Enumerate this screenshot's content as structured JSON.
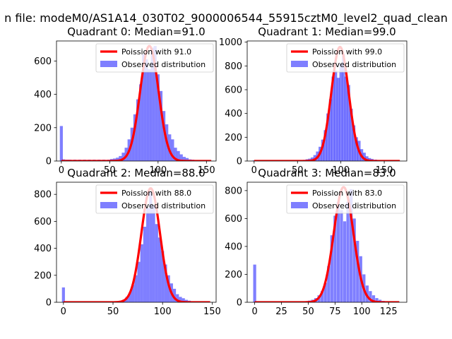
{
  "figure": {
    "suptitle": "n file: modeM0/AS1A14_030T02_9000006544_55915cztM0_level2_quad_clean"
  },
  "colors": {
    "bar": "#0000ff",
    "bar_alpha": 0.5,
    "poisson_line": "#ff0000",
    "background": "#ffffff",
    "axis": "#000000"
  },
  "chart_data": [
    {
      "type": "bar",
      "title": "Quadrant 0: Median=91.0",
      "xlim": [
        -5,
        160
      ],
      "ylim": [
        0,
        720
      ],
      "xticks": [
        0,
        50,
        100,
        150
      ],
      "yticks": [
        0,
        200,
        400,
        600
      ],
      "legend": {
        "position": "top-right",
        "line_label": "Poission with 91.0",
        "bar_label": "Observed distribution"
      },
      "poisson": {
        "mean": 91.0,
        "peak": 690,
        "x_range": [
          0,
          155
        ]
      },
      "bin_width": 3.1,
      "bars": [
        {
          "x": 0,
          "y": 210
        },
        {
          "x": 2.5,
          "y": 10
        },
        {
          "x": 6,
          "y": 8
        },
        {
          "x": 9,
          "y": 8
        },
        {
          "x": 14,
          "y": 8
        },
        {
          "x": 19,
          "y": 8
        },
        {
          "x": 24,
          "y": 8
        },
        {
          "x": 29,
          "y": 8
        },
        {
          "x": 34,
          "y": 8
        },
        {
          "x": 39,
          "y": 8
        },
        {
          "x": 44,
          "y": 8
        },
        {
          "x": 49,
          "y": 8
        },
        {
          "x": 52,
          "y": 12
        },
        {
          "x": 55,
          "y": 15
        },
        {
          "x": 58,
          "y": 20
        },
        {
          "x": 61,
          "y": 30
        },
        {
          "x": 64,
          "y": 50
        },
        {
          "x": 67,
          "y": 80
        },
        {
          "x": 70,
          "y": 130
        },
        {
          "x": 73,
          "y": 200
        },
        {
          "x": 76,
          "y": 280
        },
        {
          "x": 79,
          "y": 370
        },
        {
          "x": 82,
          "y": 460
        },
        {
          "x": 85,
          "y": 640
        },
        {
          "x": 88,
          "y": 610
        },
        {
          "x": 91,
          "y": 550
        },
        {
          "x": 94,
          "y": 680
        },
        {
          "x": 97,
          "y": 690
        },
        {
          "x": 100,
          "y": 520
        },
        {
          "x": 103,
          "y": 420
        },
        {
          "x": 106,
          "y": 300
        },
        {
          "x": 109,
          "y": 220
        },
        {
          "x": 112,
          "y": 160
        },
        {
          "x": 115,
          "y": 130
        },
        {
          "x": 118,
          "y": 80
        },
        {
          "x": 121,
          "y": 60
        },
        {
          "x": 124,
          "y": 40
        },
        {
          "x": 127,
          "y": 25
        },
        {
          "x": 130,
          "y": 18
        },
        {
          "x": 133,
          "y": 10
        },
        {
          "x": 136,
          "y": 8
        },
        {
          "x": 140,
          "y": 6
        },
        {
          "x": 145,
          "y": 5
        },
        {
          "x": 150,
          "y": 4
        }
      ]
    },
    {
      "type": "bar",
      "title": "Quadrant 1: Median=99.0",
      "xlim": [
        -8,
        176
      ],
      "ylim": [
        0,
        1010
      ],
      "xticks": [
        0,
        50,
        100,
        150
      ],
      "yticks": [
        0,
        200,
        400,
        600,
        800,
        1000
      ],
      "legend": {
        "position": "top-right",
        "line_label": "Poission with 99.0",
        "bar_label": "Observed distribution"
      },
      "poisson": {
        "mean": 99.0,
        "peak": 960,
        "x_range": [
          0,
          168
        ]
      },
      "bin_width": 3.4,
      "bars": [
        {
          "x": 0,
          "y": 5
        },
        {
          "x": 20,
          "y": 5
        },
        {
          "x": 40,
          "y": 5
        },
        {
          "x": 55,
          "y": 6
        },
        {
          "x": 58,
          "y": 10
        },
        {
          "x": 61,
          "y": 15
        },
        {
          "x": 64,
          "y": 20
        },
        {
          "x": 67,
          "y": 30
        },
        {
          "x": 70,
          "y": 50
        },
        {
          "x": 73,
          "y": 80
        },
        {
          "x": 76,
          "y": 120
        },
        {
          "x": 79,
          "y": 180
        },
        {
          "x": 82,
          "y": 260
        },
        {
          "x": 85,
          "y": 400
        },
        {
          "x": 88,
          "y": 520
        },
        {
          "x": 91,
          "y": 710
        },
        {
          "x": 94,
          "y": 760
        },
        {
          "x": 97,
          "y": 700
        },
        {
          "x": 100,
          "y": 820
        },
        {
          "x": 103,
          "y": 900
        },
        {
          "x": 106,
          "y": 710
        },
        {
          "x": 109,
          "y": 640
        },
        {
          "x": 112,
          "y": 440
        },
        {
          "x": 115,
          "y": 300
        },
        {
          "x": 118,
          "y": 200
        },
        {
          "x": 121,
          "y": 170
        },
        {
          "x": 124,
          "y": 100
        },
        {
          "x": 127,
          "y": 70
        },
        {
          "x": 130,
          "y": 40
        },
        {
          "x": 133,
          "y": 25
        },
        {
          "x": 136,
          "y": 18
        },
        {
          "x": 140,
          "y": 12
        },
        {
          "x": 145,
          "y": 8
        },
        {
          "x": 150,
          "y": 6
        },
        {
          "x": 155,
          "y": 5
        },
        {
          "x": 160,
          "y": 4
        },
        {
          "x": 165,
          "y": 3
        }
      ]
    },
    {
      "type": "bar",
      "title": "Quadrant 2: Median=88.0",
      "xlim": [
        -7,
        154
      ],
      "ylim": [
        0,
        890
      ],
      "xticks": [
        0,
        50,
        100,
        150
      ],
      "yticks": [
        0,
        200,
        400,
        600,
        800
      ],
      "legend": {
        "position": "top-right",
        "line_label": "Poission with 88.0",
        "bar_label": "Observed distribution"
      },
      "poisson": {
        "mean": 88.0,
        "peak": 845,
        "x_range": [
          0,
          148
        ]
      },
      "bin_width": 3.0,
      "bars": [
        {
          "x": 0,
          "y": 110
        },
        {
          "x": 10,
          "y": 4
        },
        {
          "x": 30,
          "y": 4
        },
        {
          "x": 50,
          "y": 5
        },
        {
          "x": 55,
          "y": 8
        },
        {
          "x": 58,
          "y": 12
        },
        {
          "x": 61,
          "y": 20
        },
        {
          "x": 64,
          "y": 40
        },
        {
          "x": 67,
          "y": 70
        },
        {
          "x": 70,
          "y": 130
        },
        {
          "x": 73,
          "y": 200
        },
        {
          "x": 76,
          "y": 300
        },
        {
          "x": 79,
          "y": 430
        },
        {
          "x": 82,
          "y": 560
        },
        {
          "x": 85,
          "y": 700
        },
        {
          "x": 88,
          "y": 820
        },
        {
          "x": 91,
          "y": 720
        },
        {
          "x": 94,
          "y": 580
        },
        {
          "x": 97,
          "y": 480
        },
        {
          "x": 100,
          "y": 380
        },
        {
          "x": 103,
          "y": 280
        },
        {
          "x": 106,
          "y": 200
        },
        {
          "x": 109,
          "y": 140
        },
        {
          "x": 112,
          "y": 100
        },
        {
          "x": 115,
          "y": 60
        },
        {
          "x": 118,
          "y": 40
        },
        {
          "x": 121,
          "y": 30
        },
        {
          "x": 124,
          "y": 18
        },
        {
          "x": 127,
          "y": 12
        },
        {
          "x": 130,
          "y": 8
        },
        {
          "x": 135,
          "y": 5
        },
        {
          "x": 140,
          "y": 4
        },
        {
          "x": 145,
          "y": 3
        }
      ]
    },
    {
      "type": "bar",
      "title": "Quadrant 3: Median=83.0",
      "xlim": [
        -7,
        142
      ],
      "ylim": [
        0,
        860
      ],
      "xticks": [
        0,
        25,
        50,
        75,
        100,
        125
      ],
      "yticks": [
        0,
        200,
        400,
        600,
        800
      ],
      "legend": {
        "position": "top-right",
        "line_label": "Poission with 83.0",
        "bar_label": "Observed distribution"
      },
      "poisson": {
        "mean": 83.0,
        "peak": 825,
        "x_range": [
          0,
          135
        ]
      },
      "bin_width": 2.8,
      "bars": [
        {
          "x": 0,
          "y": 270
        },
        {
          "x": 10,
          "y": 5
        },
        {
          "x": 20,
          "y": 5
        },
        {
          "x": 30,
          "y": 5
        },
        {
          "x": 40,
          "y": 5
        },
        {
          "x": 48,
          "y": 8
        },
        {
          "x": 51,
          "y": 12
        },
        {
          "x": 54,
          "y": 18
        },
        {
          "x": 57,
          "y": 30
        },
        {
          "x": 60,
          "y": 50
        },
        {
          "x": 63,
          "y": 80
        },
        {
          "x": 66,
          "y": 140
        },
        {
          "x": 69,
          "y": 260
        },
        {
          "x": 72,
          "y": 480
        },
        {
          "x": 75,
          "y": 620
        },
        {
          "x": 78,
          "y": 720
        },
        {
          "x": 81,
          "y": 660
        },
        {
          "x": 84,
          "y": 580
        },
        {
          "x": 87,
          "y": 720
        },
        {
          "x": 90,
          "y": 810
        },
        {
          "x": 93,
          "y": 600
        },
        {
          "x": 96,
          "y": 440
        },
        {
          "x": 99,
          "y": 330
        },
        {
          "x": 102,
          "y": 200
        },
        {
          "x": 105,
          "y": 120
        },
        {
          "x": 108,
          "y": 80
        },
        {
          "x": 111,
          "y": 50
        },
        {
          "x": 114,
          "y": 30
        },
        {
          "x": 117,
          "y": 18
        },
        {
          "x": 120,
          "y": 10
        },
        {
          "x": 125,
          "y": 6
        },
        {
          "x": 130,
          "y": 4
        }
      ]
    }
  ]
}
